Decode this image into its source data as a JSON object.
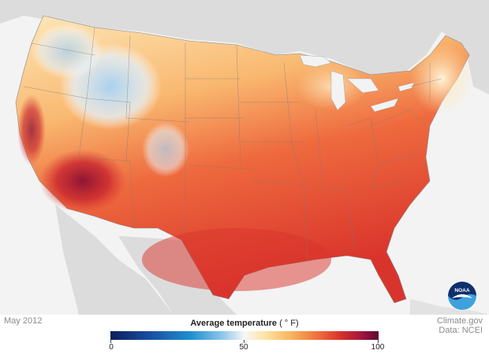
{
  "date_label": "May 2012",
  "legend": {
    "title": "Average temperature",
    "units": "( ° F)",
    "ticks": [
      "0",
      "50",
      "100"
    ],
    "range": [
      0,
      100
    ],
    "colors": [
      "#0c1f5a",
      "#1f8fd0",
      "#f7f7f7",
      "#f7b05a",
      "#d7302b",
      "#5a0a2e"
    ]
  },
  "credit": {
    "line1": "Climate.gov",
    "line2": "Data: NCEI"
  },
  "logo_text": "NOAA"
}
